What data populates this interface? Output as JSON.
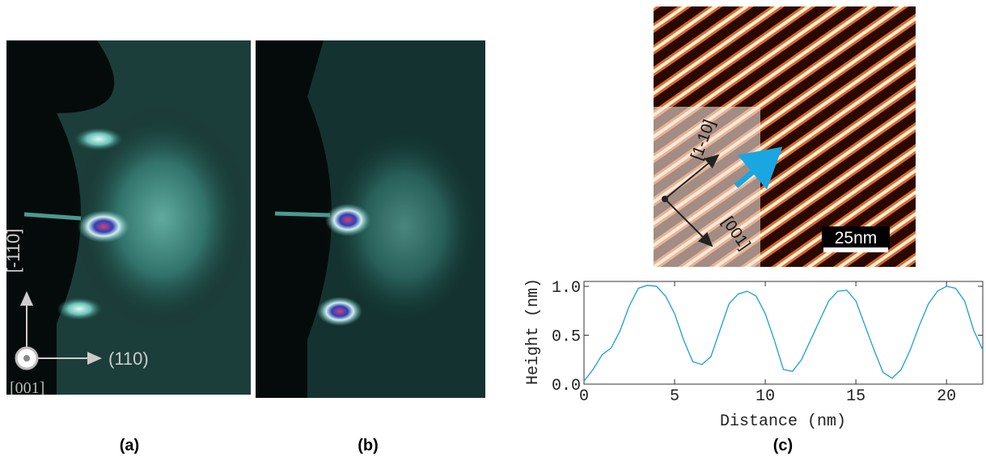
{
  "panels": {
    "a": {
      "label": "(a)",
      "axis_vertical": "[-110]",
      "axis_horizontal": "(110)",
      "axis_normal": "[001]"
    },
    "b": {
      "label": "(b)"
    },
    "c": {
      "label": "(c)",
      "direction_1": "[1-10]",
      "direction_2": "[001]",
      "scale_bar": "25nm"
    }
  },
  "chart_data": {
    "type": "line",
    "x_label": "Distance (nm)",
    "y_label": "Height (nm)",
    "x": [
      0,
      0.5,
      1,
      1.5,
      2,
      2.5,
      3,
      3.5,
      4,
      4.5,
      5,
      5.5,
      6,
      6.5,
      7,
      7.5,
      8,
      8.5,
      9,
      9.5,
      10,
      10.5,
      11,
      11.5,
      12,
      12.5,
      13,
      13.5,
      14,
      14.5,
      15,
      15.5,
      16,
      16.5,
      17,
      17.5,
      18,
      18.5,
      19,
      19.5,
      20,
      20.5,
      21,
      21.5,
      22
    ],
    "series": [
      {
        "name": "Height",
        "color": "#1a9fd8",
        "values": [
          0.03,
          0.15,
          0.3,
          0.37,
          0.55,
          0.8,
          0.98,
          1.01,
          1.0,
          0.9,
          0.72,
          0.45,
          0.23,
          0.2,
          0.28,
          0.55,
          0.82,
          0.92,
          0.95,
          0.9,
          0.72,
          0.45,
          0.15,
          0.13,
          0.25,
          0.45,
          0.65,
          0.85,
          0.95,
          0.96,
          0.85,
          0.6,
          0.35,
          0.12,
          0.06,
          0.15,
          0.35,
          0.6,
          0.82,
          0.95,
          1.0,
          0.98,
          0.85,
          0.55,
          0.35
        ]
      }
    ],
    "xlim": [
      0,
      22
    ],
    "ylim": [
      0,
      1.05
    ],
    "xticks": [
      0,
      5,
      10,
      15,
      20
    ],
    "yticks": [
      {
        "value": 0,
        "label": "0.0"
      },
      {
        "value": 0.5,
        "label": "0.5"
      },
      {
        "value": 1,
        "label": "1.0"
      }
    ]
  }
}
